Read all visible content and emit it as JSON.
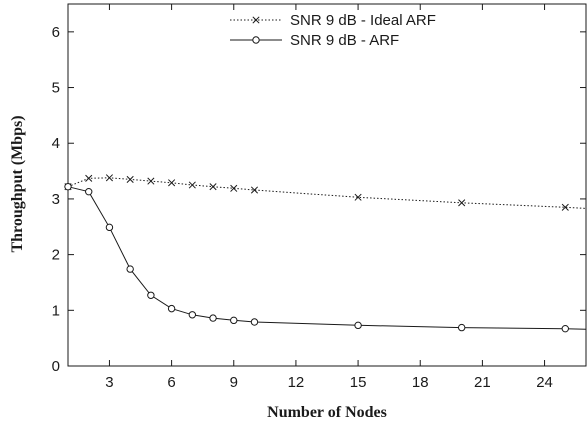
{
  "chart_data": {
    "type": "line",
    "title": "",
    "xlabel": "Number of Nodes",
    "ylabel": "Throughput (Mbps)",
    "xlim": [
      1,
      26
    ],
    "ylim": [
      0,
      6.5
    ],
    "xticks": [
      3,
      6,
      9,
      12,
      15,
      18,
      21,
      24
    ],
    "yticks": [
      0,
      1,
      2,
      3,
      4,
      5,
      6
    ],
    "grid": false,
    "legend_position": "top-center",
    "series": [
      {
        "name": "SNR 9 dB - Ideal ARF",
        "line_style": "dotted",
        "marker": "x",
        "color": "#1a1a1a",
        "x": [
          1,
          2,
          3,
          4,
          5,
          6,
          7,
          8,
          9,
          10,
          15,
          20,
          25,
          26
        ],
        "y": [
          3.22,
          3.37,
          3.38,
          3.35,
          3.32,
          3.29,
          3.25,
          3.22,
          3.19,
          3.16,
          3.03,
          2.93,
          2.85,
          2.83
        ]
      },
      {
        "name": "SNR 9 dB - ARF",
        "line_style": "solid",
        "marker": "circle",
        "color": "#1a1a1a",
        "x": [
          1,
          2,
          3,
          4,
          5,
          6,
          7,
          8,
          9,
          10,
          15,
          20,
          25,
          26
        ],
        "y": [
          3.22,
          3.13,
          2.49,
          1.74,
          1.27,
          1.03,
          0.92,
          0.86,
          0.82,
          0.79,
          0.73,
          0.69,
          0.67,
          0.66
        ]
      }
    ]
  }
}
